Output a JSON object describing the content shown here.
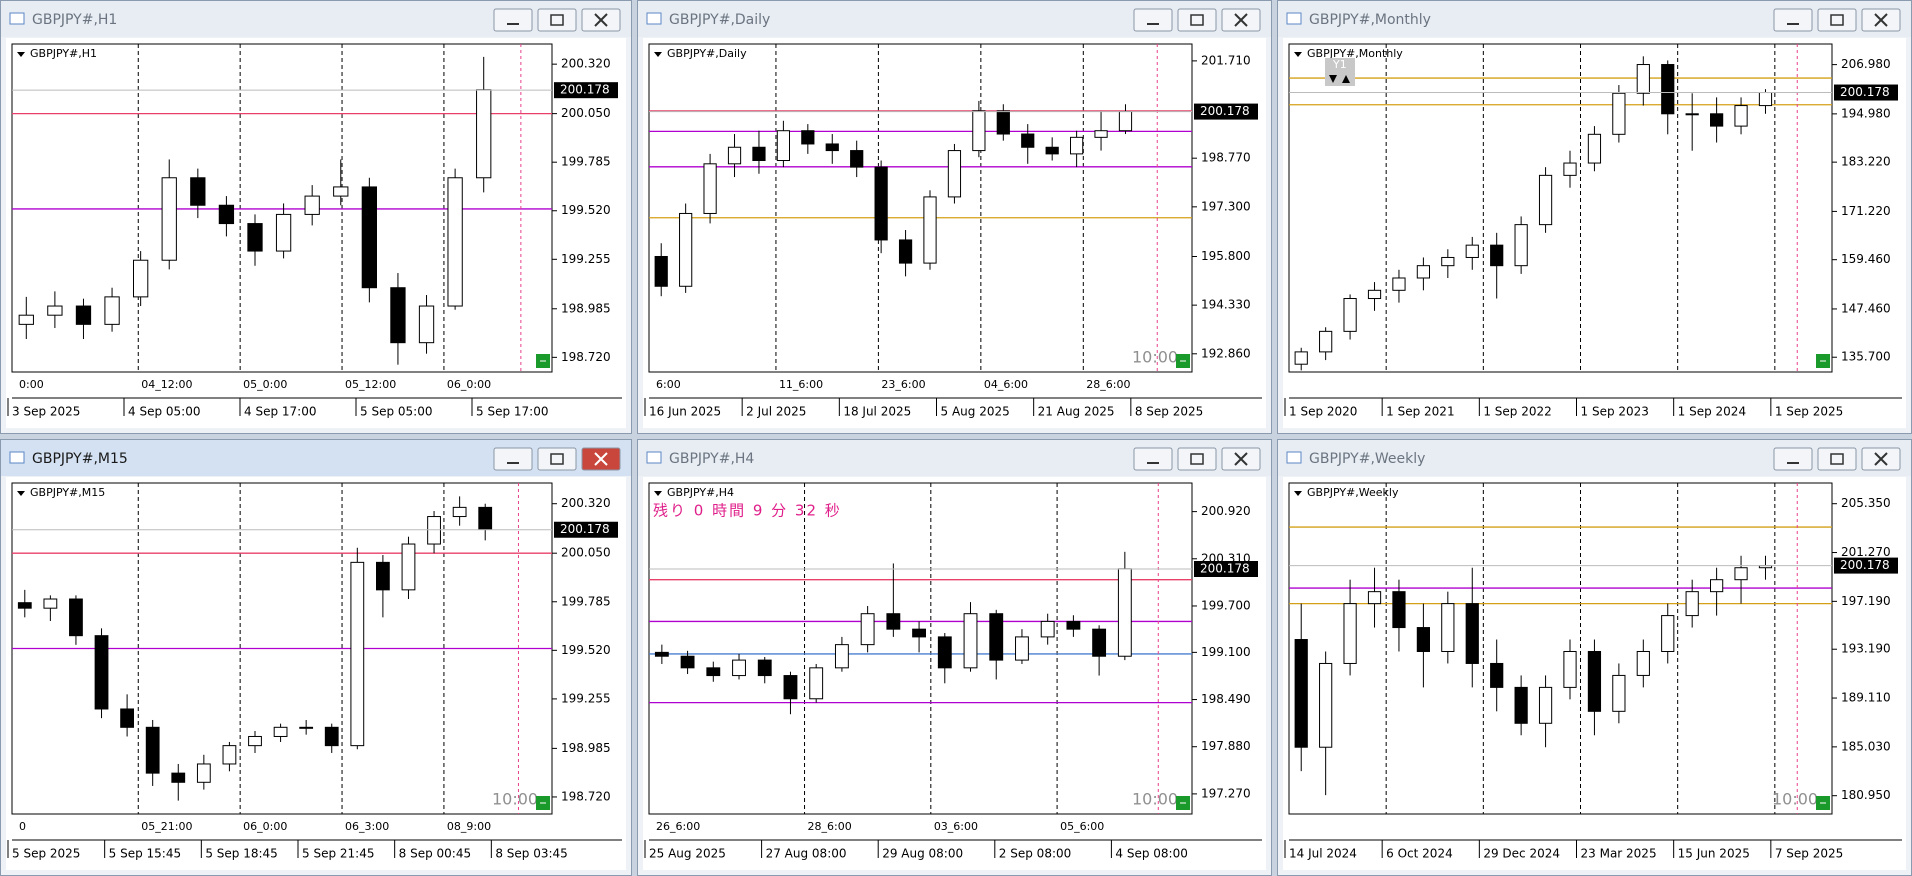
{
  "windows": [
    {
      "title": "GBPJPY#,H1",
      "ylim": [
        198.64,
        200.43
      ],
      "yticks": [
        {
          "value": 200.32,
          "label": "200.320"
        },
        {
          "value": 200.05,
          "label": "200.050"
        },
        199.785,
        {
          "value": 199.52,
          "label": "199.520"
        },
        199.255,
        198.985,
        {
          "value": 198.72,
          "label": "198.720"
        }
      ],
      "price": 200.178,
      "time_labels": [
        "3 Sep 2025",
        "4 Sep 05:00",
        "4 Sep 17:00",
        "5 Sep 05:00",
        "5 Sep 17:00"
      ],
      "grid_labels": [
        "0:00",
        "04_12:00",
        "05_0:00",
        "05_12:00",
        "06_0:00"
      ],
      "levels": [
        {
          "value": 200.05,
          "color": "#e8406a"
        },
        {
          "value": 199.53,
          "color": "#b000d0"
        }
      ],
      "candles": [
        [
          198.9,
          199.05,
          198.82,
          198.95
        ],
        [
          198.95,
          199.08,
          198.88,
          199.0
        ],
        [
          199.0,
          199.04,
          198.82,
          198.9
        ],
        [
          198.9,
          199.1,
          198.86,
          199.05
        ],
        [
          199.05,
          199.3,
          199.0,
          199.25
        ],
        [
          199.25,
          199.8,
          199.2,
          199.7
        ],
        [
          199.7,
          199.75,
          199.48,
          199.55
        ],
        [
          199.55,
          199.6,
          199.38,
          199.45
        ],
        [
          199.45,
          199.5,
          199.22,
          199.3
        ],
        [
          199.3,
          199.56,
          199.26,
          199.5
        ],
        [
          199.5,
          199.66,
          199.44,
          199.6
        ],
        [
          199.6,
          199.8,
          199.55,
          199.65
        ],
        [
          199.65,
          199.7,
          199.02,
          199.1
        ],
        [
          199.1,
          199.18,
          198.68,
          198.8
        ],
        [
          198.8,
          199.06,
          198.74,
          199.0
        ],
        [
          199.0,
          199.75,
          198.98,
          199.7
        ],
        [
          199.7,
          200.36,
          199.62,
          200.18
        ]
      ]
    },
    {
      "title": "GBPJPY#,Daily",
      "ylim": [
        192.31,
        202.22
      ],
      "yticks": [
        {
          "value": 201.71,
          "label": "201.710"
        },
        {
          "value": 198.77,
          "label": "198.770"
        },
        {
          "value": 197.3,
          "label": "197.300"
        },
        {
          "value": 195.8,
          "label": "195.800"
        },
        {
          "value": 194.33,
          "label": "194.330"
        },
        {
          "value": 192.86,
          "label": "192.860"
        }
      ],
      "price": 200.178,
      "time_labels": [
        "16 Jun 2025",
        "2 Jul 2025",
        "18 Jul 2025",
        "5 Aug 2025",
        "21 Aug 2025",
        "8 Sep 2025"
      ],
      "grid_labels": [
        "6:00",
        "11_6:00",
        "23_6:00",
        "04_6:00",
        "28_6:00"
      ],
      "levels": [
        {
          "value": 200.2,
          "color": "#e8406a"
        },
        {
          "value": 199.58,
          "color": "#b000d0"
        },
        {
          "value": 198.51,
          "color": "#b000d0"
        },
        {
          "value": 196.97,
          "color": "#d4a017"
        }
      ],
      "timer": "10:00",
      "candles": [
        [
          195.8,
          196.2,
          194.6,
          194.9
        ],
        [
          194.9,
          197.4,
          194.7,
          197.1
        ],
        [
          197.1,
          198.9,
          196.8,
          198.6
        ],
        [
          198.6,
          199.5,
          198.2,
          199.1
        ],
        [
          199.1,
          199.6,
          198.3,
          198.7
        ],
        [
          198.7,
          199.9,
          198.5,
          199.6
        ],
        [
          199.6,
          199.8,
          198.9,
          199.2
        ],
        [
          199.2,
          199.5,
          198.6,
          199.0
        ],
        [
          199.0,
          199.3,
          198.2,
          198.5
        ],
        [
          198.5,
          198.7,
          195.9,
          196.3
        ],
        [
          196.3,
          196.6,
          195.2,
          195.6
        ],
        [
          195.6,
          197.8,
          195.4,
          197.6
        ],
        [
          197.6,
          199.2,
          197.4,
          199.0
        ],
        [
          199.0,
          200.5,
          198.8,
          200.2
        ],
        [
          200.2,
          200.4,
          199.3,
          199.5
        ],
        [
          199.5,
          199.8,
          198.6,
          199.1
        ],
        [
          199.1,
          199.4,
          198.7,
          198.9
        ],
        [
          198.9,
          199.6,
          198.5,
          199.4
        ],
        [
          199.4,
          200.2,
          199.0,
          199.6
        ],
        [
          199.6,
          200.4,
          199.5,
          200.18
        ]
      ]
    },
    {
      "title": "GBPJPY#,Monthly",
      "ylim": [
        132.1,
        212.0
      ],
      "yticks": [
        {
          "value": 206.98,
          "label": "206.980"
        },
        {
          "value": 194.98,
          "label": "194.980"
        },
        {
          "value": 183.22,
          "label": "183.220"
        },
        {
          "value": 171.22,
          "label": "171.220"
        },
        {
          "value": 159.46,
          "label": "159.460"
        },
        {
          "value": 147.46,
          "label": "147.460"
        },
        {
          "value": 135.7,
          "label": "135.700"
        }
      ],
      "price": 200.178,
      "time_labels": [
        "1 Sep 2020",
        "1 Sep 2021",
        "1 Sep 2022",
        "1 Sep 2023",
        "1 Sep 2024",
        "1 Sep 2025"
      ],
      "levels": [
        {
          "value": 203.7,
          "color": "#d4a017"
        },
        {
          "value": 197.2,
          "color": "#d4a017"
        }
      ],
      "button": "Y1",
      "candles": [
        [
          134,
          138,
          132.5,
          137
        ],
        [
          137,
          143,
          135,
          142
        ],
        [
          142,
          151,
          140,
          150
        ],
        [
          150,
          154,
          147,
          152
        ],
        [
          152,
          157,
          149,
          155
        ],
        [
          155,
          160,
          152,
          158
        ],
        [
          158,
          162,
          155,
          160
        ],
        [
          160,
          165,
          157,
          163
        ],
        [
          163,
          166,
          150,
          158
        ],
        [
          158,
          170,
          156,
          168
        ],
        [
          168,
          182,
          166,
          180
        ],
        [
          180,
          186,
          177,
          183
        ],
        [
          183,
          192,
          181,
          190
        ],
        [
          190,
          202,
          188,
          200
        ],
        [
          200,
          209,
          197,
          207
        ],
        [
          207,
          208,
          190,
          195
        ],
        [
          195,
          200,
          186,
          195
        ],
        [
          195,
          199,
          188,
          192
        ],
        [
          192,
          199,
          190,
          197
        ],
        [
          197,
          201,
          195,
          200.18
        ]
      ]
    },
    {
      "title": "GBPJPY#,M15",
      "active": true,
      "ylim": [
        198.627,
        200.433
      ],
      "yticks": [
        {
          "value": 200.32,
          "label": "200.320"
        },
        {
          "value": 200.05,
          "label": "200.050"
        },
        199.785,
        {
          "value": 199.52,
          "label": "199.520"
        },
        199.255,
        198.985,
        {
          "value": 198.72,
          "label": "198.720"
        }
      ],
      "price": 200.178,
      "time_labels": [
        "5 Sep 2025",
        "5 Sep 15:45",
        "5 Sep 18:45",
        "5 Sep 21:45",
        "8 Sep 00:45",
        "8 Sep 03:45"
      ],
      "grid_labels": [
        "0",
        "05_21:00",
        "06_0:00",
        "06_3:00",
        "08_9:00"
      ],
      "levels": [
        {
          "value": 200.05,
          "color": "#e8406a"
        },
        {
          "value": 199.53,
          "color": "#b000d0"
        }
      ],
      "timer": "10:00",
      "candles": [
        [
          199.78,
          199.85,
          199.7,
          199.75
        ],
        [
          199.75,
          199.82,
          199.68,
          199.8
        ],
        [
          199.8,
          199.82,
          199.55,
          199.6
        ],
        [
          199.6,
          199.64,
          199.15,
          199.2
        ],
        [
          199.2,
          199.28,
          199.05,
          199.1
        ],
        [
          199.1,
          199.14,
          198.78,
          198.85
        ],
        [
          198.85,
          198.9,
          198.7,
          198.8
        ],
        [
          198.8,
          198.95,
          198.76,
          198.9
        ],
        [
          198.9,
          199.02,
          198.86,
          199.0
        ],
        [
          199.0,
          199.08,
          198.96,
          199.05
        ],
        [
          199.05,
          199.12,
          199.02,
          199.1
        ],
        [
          199.1,
          199.14,
          199.06,
          199.1
        ],
        [
          199.1,
          199.12,
          198.96,
          199.0
        ],
        [
          199.0,
          200.08,
          198.98,
          200.0
        ],
        [
          200.0,
          200.04,
          199.7,
          199.85
        ],
        [
          199.85,
          200.14,
          199.8,
          200.1
        ],
        [
          200.1,
          200.28,
          200.05,
          200.25
        ],
        [
          200.25,
          200.36,
          200.2,
          200.3
        ],
        [
          200.3,
          200.32,
          200.12,
          200.18
        ]
      ]
    },
    {
      "title": "GBPJPY#,H4",
      "ylim": [
        197.01,
        201.29
      ],
      "yticks": [
        {
          "value": 200.92,
          "label": "200.920"
        },
        {
          "value": 200.31,
          "label": "200.310"
        },
        {
          "value": 199.7,
          "label": "199.700"
        },
        {
          "value": 199.1,
          "label": "199.100"
        },
        {
          "value": 198.49,
          "label": "198.490"
        },
        {
          "value": 197.88,
          "label": "197.880"
        },
        {
          "value": 197.27,
          "label": "197.270"
        }
      ],
      "price": 200.178,
      "time_labels": [
        "25 Aug 2025",
        "27 Aug 08:00",
        "29 Aug 08:00",
        "2 Sep 08:00",
        "4 Sep 08:00"
      ],
      "grid_labels": [
        "26_6:00",
        "28_6:00",
        "03_6:00",
        "05_6:00"
      ],
      "levels": [
        {
          "value": 200.04,
          "color": "#e8406a"
        },
        {
          "value": 199.5,
          "color": "#b000d0"
        },
        {
          "value": 199.08,
          "color": "#4a7fd0"
        },
        {
          "value": 198.45,
          "color": "#b000d0"
        }
      ],
      "note": "残り 0 時間 9 分 32 秒",
      "timer": "10:00",
      "candles": [
        [
          199.1,
          199.2,
          198.95,
          199.05
        ],
        [
          199.05,
          199.12,
          198.82,
          198.9
        ],
        [
          198.9,
          198.98,
          198.72,
          198.8
        ],
        [
          198.8,
          199.08,
          198.75,
          199.0
        ],
        [
          199.0,
          199.04,
          198.7,
          198.8
        ],
        [
          198.8,
          198.85,
          198.3,
          198.5
        ],
        [
          198.5,
          198.95,
          198.45,
          198.9
        ],
        [
          198.9,
          199.3,
          198.85,
          199.2
        ],
        [
          199.2,
          199.7,
          199.1,
          199.6
        ],
        [
          199.6,
          200.25,
          199.3,
          199.4
        ],
        [
          199.4,
          199.5,
          199.1,
          199.3
        ],
        [
          199.3,
          199.35,
          198.7,
          198.9
        ],
        [
          198.9,
          199.75,
          198.85,
          199.6
        ],
        [
          199.6,
          199.65,
          198.75,
          199.0
        ],
        [
          199.0,
          199.4,
          198.95,
          199.3
        ],
        [
          199.3,
          199.6,
          199.2,
          199.5
        ],
        [
          199.5,
          199.58,
          199.3,
          199.4
        ],
        [
          199.4,
          199.45,
          198.8,
          199.05
        ],
        [
          199.05,
          200.4,
          199.0,
          200.18
        ]
      ]
    },
    {
      "title": "GBPJPY#,Weekly",
      "ylim": [
        179.42,
        207.08
      ],
      "yticks": [
        {
          "value": 205.35,
          "label": "205.350"
        },
        {
          "value": 201.27,
          "label": "201.270"
        },
        {
          "value": 197.19,
          "label": "197.190"
        },
        {
          "value": 193.19,
          "label": "193.190"
        },
        {
          "value": 189.11,
          "label": "189.110"
        },
        {
          "value": 185.03,
          "label": "185.030"
        },
        {
          "value": 180.95,
          "label": "180.950"
        }
      ],
      "price": 200.178,
      "time_labels": [
        "14 Jul 2024",
        "6 Oct 2024",
        "29 Dec 2024",
        "23 Mar 2025",
        "15 Jun 2025",
        "7 Sep 2025"
      ],
      "levels": [
        {
          "value": 203.4,
          "color": "#d4a017"
        },
        {
          "value": 198.3,
          "color": "#b000d0"
        },
        {
          "value": 197.0,
          "color": "#d4a017"
        }
      ],
      "timer": "10:00",
      "candles": [
        [
          194,
          197,
          183,
          185
        ],
        [
          185,
          193,
          181,
          192
        ],
        [
          192,
          199,
          191,
          197
        ],
        [
          197,
          200,
          195,
          198
        ],
        [
          198,
          199,
          193,
          195
        ],
        [
          195,
          197,
          190,
          193
        ],
        [
          193,
          198,
          192,
          197
        ],
        [
          197,
          200,
          190,
          192
        ],
        [
          192,
          194,
          188,
          190
        ],
        [
          190,
          191,
          186,
          187
        ],
        [
          187,
          191,
          185,
          190
        ],
        [
          190,
          194,
          189,
          193
        ],
        [
          193,
          194,
          186,
          188
        ],
        [
          188,
          192,
          187,
          191
        ],
        [
          191,
          194,
          190,
          193
        ],
        [
          193,
          197,
          192,
          196
        ],
        [
          196,
          199,
          195,
          198
        ],
        [
          198,
          200,
          196,
          199
        ],
        [
          199,
          201,
          197,
          200
        ],
        [
          200,
          201,
          199,
          200.18
        ]
      ]
    }
  ]
}
